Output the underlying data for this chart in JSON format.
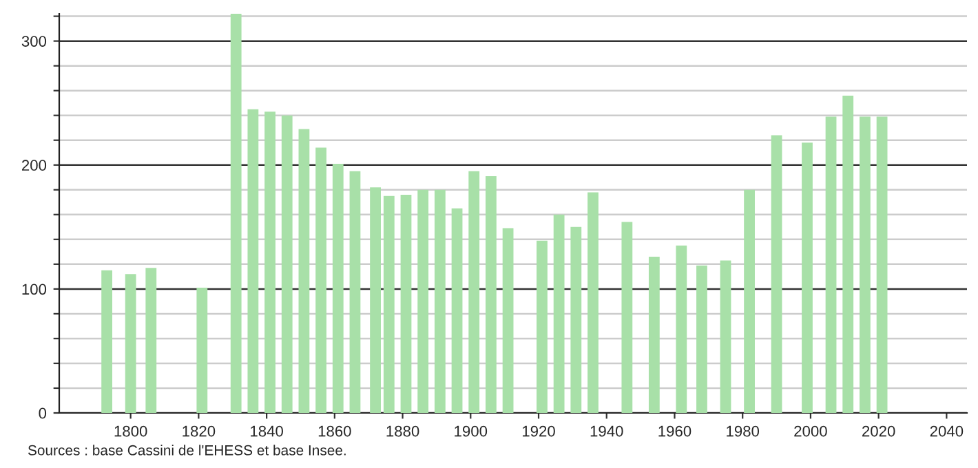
{
  "chart_data": {
    "type": "bar",
    "x": [
      1793,
      1800,
      1806,
      1821,
      1831,
      1836,
      1841,
      1846,
      1851,
      1856,
      1861,
      1866,
      1872,
      1876,
      1881,
      1886,
      1891,
      1896,
      1901,
      1906,
      1911,
      1921,
      1926,
      1931,
      1936,
      1946,
      1954,
      1962,
      1968,
      1975,
      1982,
      1990,
      1999,
      2006,
      2011,
      2016,
      2021
    ],
    "values": [
      115,
      112,
      117,
      101,
      322,
      245,
      243,
      240,
      229,
      214,
      201,
      195,
      182,
      175,
      176,
      180,
      180,
      165,
      195,
      191,
      149,
      139,
      160,
      150,
      178,
      154,
      126,
      135,
      119,
      123,
      180,
      224,
      218,
      239,
      256,
      239,
      239
    ],
    "color": "#a8e0a8",
    "xlim": [
      1779,
      2046
    ],
    "xticks": [
      1800,
      1820,
      1840,
      1860,
      1880,
      1900,
      1920,
      1940,
      1960,
      1980,
      2000,
      2020,
      2040
    ],
    "ylim": [
      0,
      322
    ],
    "yticks": [
      0,
      {
        "value": 20,
        "label": null
      },
      {
        "value": 40,
        "label": null
      },
      {
        "value": 60,
        "label": null
      },
      {
        "value": 80,
        "label": null
      },
      100,
      {
        "value": 120,
        "label": null
      },
      {
        "value": 140,
        "label": null
      },
      {
        "value": 160,
        "label": null
      },
      {
        "value": 180,
        "label": null
      },
      200,
      {
        "value": 220,
        "label": null
      },
      {
        "value": 240,
        "label": null
      },
      {
        "value": 260,
        "label": null
      },
      {
        "value": 280,
        "label": null
      },
      300,
      {
        "value": 320,
        "label": null
      }
    ],
    "grid": "y",
    "annotations": [
      "Sources : base Cassini de l'EHESS et base Insee."
    ]
  }
}
